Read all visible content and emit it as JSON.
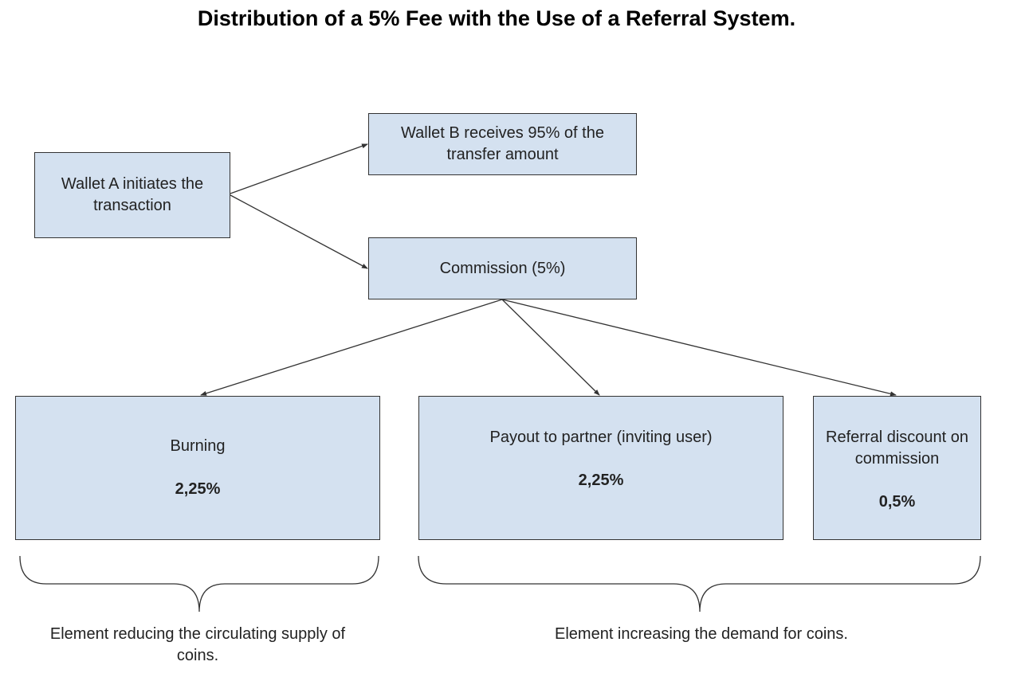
{
  "title": "Distribution of a 5% Fee with the Use of a Referral System.",
  "nodes": {
    "wallet_a": {
      "label": "Wallet A initiates the transaction"
    },
    "wallet_b": {
      "label": "Wallet B receives 95% of the transfer amount"
    },
    "commission": {
      "label": "Commission (5%)"
    },
    "burning": {
      "label": "Burning",
      "value": "2,25%"
    },
    "payout": {
      "label": "Payout to partner (inviting user)",
      "value": "2,25%"
    },
    "referral": {
      "label": "Referral discount on commission",
      "value": "0,5%"
    }
  },
  "captions": {
    "supply": "Element reducing the circulating supply of coins.",
    "demand": "Element increasing the demand for coins."
  },
  "colors": {
    "box_fill": "#d4e1f0",
    "box_border": "#333333",
    "line": "#333333"
  }
}
